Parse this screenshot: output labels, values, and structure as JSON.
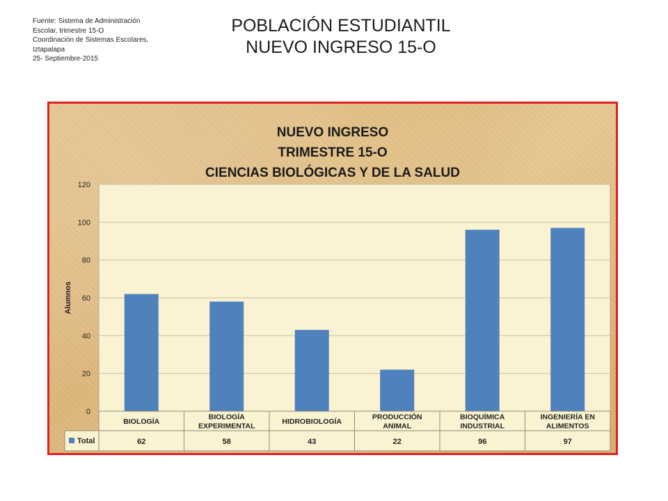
{
  "source": {
    "lines": [
      "Fuente: Sistema de Administración",
      "Escolar, trimestre 15-O",
      "Coordinación de Sistemas Escolares,",
      "Iztapalapa",
      "25- Septiembre-2015"
    ]
  },
  "slide_title": {
    "line1": "POBLACIÓN ESTUDIANTIL",
    "line2": "NUEVO INGRESO 15-O"
  },
  "colors": {
    "bar": "#4f81bd",
    "frame_border": "#e02020",
    "plot_bg": "#faf3d2"
  },
  "chart_data": {
    "type": "bar",
    "title": [
      "NUEVO INGRESO",
      "TRIMESTRE 15-O",
      "CIENCIAS BIOLÓGICAS Y DE LA SALUD"
    ],
    "ylabel": "Alumnos",
    "xlabel": "",
    "ylim": [
      0,
      120
    ],
    "yticks": [
      0,
      20,
      40,
      60,
      80,
      100,
      120
    ],
    "grid": true,
    "categories": [
      [
        "BIOLOGÍA"
      ],
      [
        "BIOLOGÍA",
        "EXPERIMENTAL"
      ],
      [
        "HIDROBIOLOGÍA"
      ],
      [
        "PRODUCCIÓN",
        "ANIMAL"
      ],
      [
        "BIOQUÍMICA",
        "INDUSTRIAL"
      ],
      [
        "INGENIERÍA EN",
        "ALIMENTOS"
      ]
    ],
    "series": [
      {
        "name": "Total",
        "values": [
          62,
          58,
          43,
          22,
          96,
          97
        ]
      }
    ],
    "data_table": true
  }
}
